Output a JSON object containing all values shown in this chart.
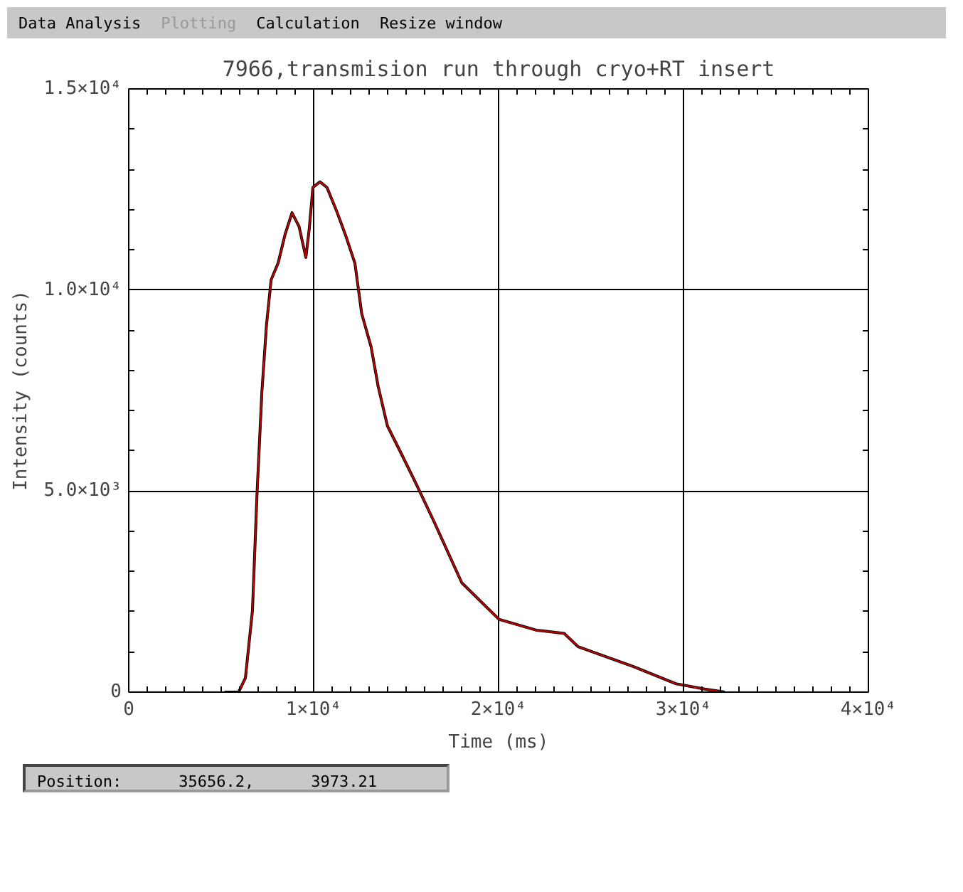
{
  "chart_data": {
    "type": "line",
    "title": "7966,transmision run through cryo+RT insert",
    "xlabel": "Time (ms)",
    "ylabel": "Intensity (counts)",
    "annotations": [
      "Data Analysis",
      "Plotting",
      "Calculation",
      "Resize window",
      "Position:",
      "35656.2,",
      "3973.21"
    ],
    "x": [
      5180,
      5940,
      6310,
      6690,
      6940,
      7200,
      7450,
      7700,
      8080,
      8450,
      8830,
      9210,
      9580,
      9760,
      9960,
      10340,
      10720,
      11220,
      11720,
      12230,
      12600,
      13110,
      13490,
      13990,
      14740,
      15490,
      16500,
      18010,
      20020,
      22040,
      23550,
      24300,
      27320,
      29580,
      31100,
      32230
    ],
    "series": [
      {
        "color": "#000000",
        "values": [
          0,
          0,
          350,
          2020,
          4950,
          7460,
          9130,
          10250,
          10670,
          11370,
          11920,
          11580,
          10810,
          11510,
          12550,
          12690,
          12550,
          11990,
          11370,
          10670,
          9410,
          8580,
          7600,
          6620,
          5930,
          5230,
          4250,
          2720,
          1810,
          1540,
          1460,
          1130,
          630,
          210,
          80,
          0
        ]
      },
      {
        "color": "#cc0000",
        "values": [
          0,
          0,
          350,
          2020,
          4950,
          7460,
          9130,
          10250,
          10670,
          11370,
          11920,
          11580,
          10810,
          11510,
          12550,
          12690,
          12550,
          11990,
          11370,
          10670,
          9410,
          8580,
          7600,
          6620,
          5930,
          5230,
          4250,
          2720,
          1810,
          1540,
          1460,
          1130,
          630,
          210,
          80,
          0
        ]
      }
    ],
    "xlim": [
      0,
      40000
    ],
    "ylim": [
      0,
      15000
    ],
    "xticks": [
      0,
      {
        "value": 10000,
        "label": "1×10⁴"
      },
      {
        "value": 20000,
        "label": "2×10⁴"
      },
      {
        "value": 30000,
        "label": "3×10⁴"
      },
      {
        "value": 40000,
        "label": "4×10⁴"
      }
    ],
    "yticks": [
      0,
      {
        "value": 5000,
        "label": "5.0×10³"
      },
      {
        "value": 10000,
        "label": "1.0×10⁴"
      },
      {
        "value": 15000,
        "label": "1.5×10⁴"
      }
    ],
    "grid": true,
    "marker": "none",
    "line_style": "solid"
  }
}
